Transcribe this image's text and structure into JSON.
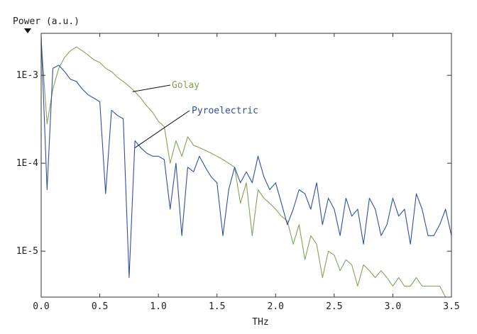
{
  "chart_data": {
    "type": "line",
    "title": "",
    "ylabel": "Power (a.u.)",
    "xlabel": "THz",
    "x_range": [
      0.0,
      3.5
    ],
    "y_scale": "log",
    "y_range": [
      3e-06,
      0.003
    ],
    "x_ticks": [
      "0.0",
      "0.5",
      "1.0",
      "1.5",
      "2.0",
      "2.5",
      "3.0",
      "3.5"
    ],
    "y_ticks": [
      {
        "value": 0.001,
        "label": "1E-3"
      },
      {
        "value": 0.0001,
        "label": "1E-4"
      },
      {
        "value": 1e-05,
        "label": "1E-5"
      }
    ],
    "grid": false,
    "legend": "inline annotations with leader lines",
    "series": [
      {
        "name": "Golay",
        "color": "#7fa35a",
        "x": [
          0.0,
          0.05,
          0.1,
          0.15,
          0.2,
          0.25,
          0.3,
          0.35,
          0.4,
          0.45,
          0.5,
          0.55,
          0.6,
          0.65,
          0.7,
          0.75,
          0.8,
          0.85,
          0.9,
          0.95,
          1.0,
          1.05,
          1.1,
          1.15,
          1.2,
          1.25,
          1.3,
          1.35,
          1.4,
          1.45,
          1.5,
          1.55,
          1.6,
          1.65,
          1.7,
          1.75,
          1.8,
          1.85,
          1.9,
          1.95,
          2.0,
          2.05,
          2.1,
          2.15,
          2.2,
          2.25,
          2.3,
          2.35,
          2.4,
          2.45,
          2.5,
          2.55,
          2.6,
          2.65,
          2.7,
          2.75,
          2.8,
          2.85,
          2.9,
          2.95,
          3.0,
          3.05,
          3.1,
          3.15,
          3.2,
          3.25,
          3.3,
          3.35,
          3.4,
          3.45,
          3.5
        ],
        "y": [
          0.0025,
          0.00028,
          0.0007,
          0.0012,
          0.0016,
          0.0019,
          0.0021,
          0.0019,
          0.0017,
          0.0015,
          0.0014,
          0.0012,
          0.0011,
          0.00095,
          0.00085,
          0.00075,
          0.00065,
          0.00055,
          0.00045,
          0.00038,
          0.0003,
          0.00026,
          0.0001,
          0.00018,
          0.00012,
          0.0002,
          0.00016,
          0.00015,
          0.00014,
          0.00013,
          0.00012,
          0.00011,
          0.0001,
          9e-05,
          3.5e-05,
          6e-05,
          1.5e-05,
          5e-05,
          4e-05,
          3.5e-05,
          3e-05,
          2.5e-05,
          2.2e-05,
          1.2e-05,
          2e-05,
          8e-06,
          1.5e-05,
          1.2e-05,
          5e-06,
          1e-05,
          9e-06,
          6e-06,
          8e-06,
          7e-06,
          4e-06,
          7e-06,
          6e-06,
          5e-06,
          6e-06,
          5e-06,
          4e-06,
          5e-06,
          4e-06,
          4e-06,
          5e-06,
          4e-06,
          4e-06,
          4e-06,
          4e-06,
          3e-06,
          3e-06
        ]
      },
      {
        "name": "Pyroelectric",
        "color": "#2e4fa3",
        "x": [
          0.0,
          0.05,
          0.1,
          0.15,
          0.2,
          0.25,
          0.3,
          0.35,
          0.4,
          0.45,
          0.5,
          0.55,
          0.6,
          0.65,
          0.7,
          0.75,
          0.8,
          0.85,
          0.9,
          0.95,
          1.0,
          1.05,
          1.1,
          1.15,
          1.2,
          1.25,
          1.3,
          1.35,
          1.4,
          1.45,
          1.5,
          1.55,
          1.6,
          1.65,
          1.7,
          1.75,
          1.8,
          1.85,
          1.9,
          1.95,
          2.0,
          2.05,
          2.1,
          2.15,
          2.2,
          2.25,
          2.3,
          2.35,
          2.4,
          2.45,
          2.5,
          2.55,
          2.6,
          2.65,
          2.7,
          2.75,
          2.8,
          2.85,
          2.9,
          2.95,
          3.0,
          3.05,
          3.1,
          3.15,
          3.2,
          3.25,
          3.3,
          3.35,
          3.4,
          3.45,
          3.5
        ],
        "y": [
          0.0028,
          5e-05,
          0.0012,
          0.0013,
          0.0011,
          0.0009,
          0.00085,
          0.0007,
          0.0006,
          0.00055,
          0.0005,
          4.5e-05,
          0.0004,
          0.00035,
          0.00032,
          5e-06,
          0.00018,
          0.00015,
          0.00013,
          0.00012,
          0.00012,
          0.00011,
          3e-05,
          0.0001,
          1.5e-05,
          9e-05,
          8e-05,
          0.00012,
          9e-05,
          7e-05,
          6e-05,
          1.5e-05,
          5e-05,
          9e-05,
          6e-05,
          8e-05,
          6e-05,
          0.00012,
          7e-05,
          5e-05,
          6e-05,
          3.5e-05,
          2e-05,
          3e-05,
          5e-05,
          4.5e-05,
          3e-05,
          6e-05,
          2e-05,
          4e-05,
          3e-05,
          1.5e-05,
          4e-05,
          2.5e-05,
          3e-05,
          1.2e-05,
          4e-05,
          3e-05,
          1.5e-05,
          2e-05,
          4e-05,
          2.5e-05,
          3e-05,
          1.2e-05,
          4.5e-05,
          3e-05,
          1.5e-05,
          1.5e-05,
          2e-05,
          3e-05,
          1.5e-05
        ]
      }
    ]
  }
}
